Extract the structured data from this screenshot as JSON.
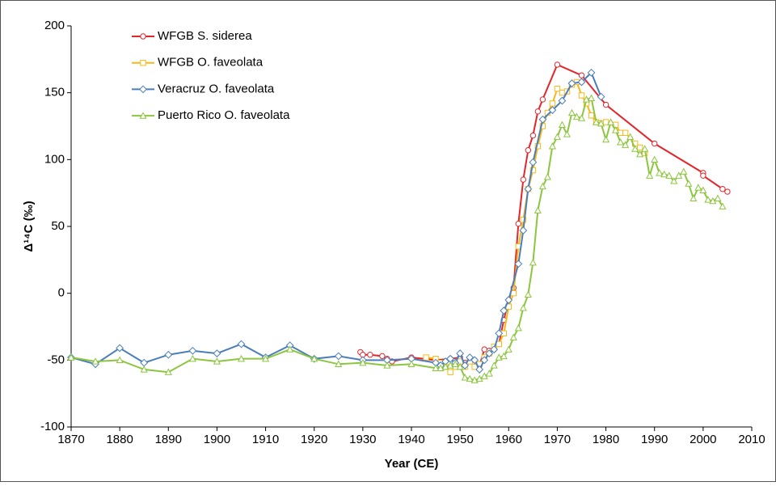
{
  "chart_data": {
    "type": "line",
    "xlabel": "Year (CE)",
    "ylabel": "Δ¹⁴C (‰)",
    "xlim": [
      1870,
      2010
    ],
    "xticks": [
      1870,
      1880,
      1890,
      1900,
      1910,
      1920,
      1930,
      1940,
      1950,
      1960,
      1970,
      1980,
      1990,
      2000,
      2010
    ],
    "ylim": [
      -100,
      200
    ],
    "yticks": [
      -100,
      -50,
      0,
      50,
      100,
      150,
      200
    ],
    "grid": false,
    "legend": "upper left",
    "series": [
      {
        "name": "WFGB S. siderea",
        "color": "#e3262b",
        "marker": "circle",
        "x": [
          1929.5,
          1930,
          1931.5,
          1934,
          1935,
          1936,
          1940,
          1945,
          1948,
          1950,
          1951,
          1952,
          1953,
          1954,
          1955,
          1956,
          1957,
          1958,
          1959,
          1960,
          1961,
          1962,
          1963,
          1964,
          1965,
          1966,
          1967,
          1970,
          1975,
          1980,
          1990,
          2000,
          2000,
          2004,
          2005
        ],
        "values": [
          -44,
          -46,
          -46,
          -47,
          -49,
          -51,
          -48,
          -50,
          -49,
          -48,
          -52,
          -50,
          -50,
          -54,
          -42,
          -43,
          -42,
          -38,
          -20,
          -5,
          4,
          52,
          85,
          107,
          118,
          136,
          145,
          171,
          163,
          141,
          112,
          90,
          88,
          78,
          76
        ]
      },
      {
        "name": "WFGB O. faveolata",
        "color": "#f7b81a",
        "marker": "square",
        "x": [
          1943,
          1945,
          1946,
          1947,
          1948,
          1949,
          1950,
          1951,
          1952,
          1953,
          1954,
          1955,
          1956,
          1957,
          1958,
          1959,
          1960,
          1961,
          1962,
          1963,
          1964,
          1965,
          1966,
          1967,
          1968,
          1969,
          1970,
          1971,
          1972,
          1973,
          1974,
          1975,
          1976,
          1977,
          1978,
          1979,
          1980,
          1982,
          1983,
          1984,
          1986,
          1987,
          1988
        ],
        "values": [
          -48,
          -49,
          -52,
          -55,
          -59,
          -55,
          -51,
          -55,
          -51,
          -55,
          -53,
          -48,
          -45,
          -40,
          -38,
          -30,
          -10,
          0,
          35,
          55,
          78,
          92,
          110,
          125,
          135,
          142,
          153,
          150,
          151,
          156,
          158,
          148,
          142,
          133,
          128,
          127,
          128,
          126,
          120,
          120,
          112,
          109,
          105
        ]
      },
      {
        "name": "Veracruz O. faveolata",
        "color": "#4a7ebb",
        "marker": "diamond",
        "x": [
          1870,
          1875,
          1880,
          1885,
          1890,
          1895,
          1900,
          1905,
          1910,
          1915,
          1920,
          1925,
          1930,
          1935,
          1940,
          1945,
          1946,
          1947,
          1948,
          1949,
          1950,
          1951,
          1952,
          1953,
          1954,
          1955,
          1956,
          1957,
          1958,
          1959,
          1960,
          1962,
          1963,
          1964,
          1965,
          1967,
          1969,
          1971,
          1973,
          1975,
          1977,
          1979
        ],
        "values": [
          -48,
          -53,
          -41,
          -52,
          -46,
          -43,
          -45,
          -38,
          -48,
          -39,
          -49,
          -47,
          -50,
          -50,
          -49,
          -52,
          -54,
          -51,
          -49,
          -52,
          -45,
          -54,
          -48,
          -50,
          -57,
          -50,
          -45,
          -42,
          -30,
          -13,
          -5,
          22,
          47,
          78,
          98,
          130,
          137,
          144,
          157,
          158,
          165,
          147
        ]
      },
      {
        "name": "Puerto Rico O. faveolata",
        "color": "#8cc63e",
        "marker": "triangle",
        "x": [
          1870,
          1875,
          1880,
          1885,
          1890,
          1895,
          1900,
          1905,
          1910,
          1915,
          1920,
          1925,
          1930,
          1935,
          1940,
          1945,
          1946,
          1947,
          1948,
          1949,
          1950,
          1951,
          1952,
          1953,
          1954,
          1955,
          1956,
          1957,
          1958,
          1959,
          1960,
          1961,
          1962,
          1963,
          1964,
          1965,
          1966,
          1967,
          1968,
          1969,
          1970,
          1971,
          1972,
          1973,
          1974,
          1975,
          1976,
          1977,
          1978,
          1979,
          1980,
          1981,
          1982,
          1983,
          1984,
          1985,
          1986,
          1987,
          1988,
          1989,
          1990,
          1991,
          1992,
          1993,
          1994,
          1995,
          1996,
          1997,
          1998,
          1999,
          2000,
          2001,
          2002,
          2003,
          2004
        ],
        "values": [
          -48,
          -51,
          -50,
          -57,
          -59,
          -49,
          -51,
          -49,
          -49,
          -42,
          -49,
          -53,
          -52,
          -54,
          -53,
          -56,
          -56,
          -55,
          -54,
          -53,
          -55,
          -63,
          -64,
          -65,
          -64,
          -62,
          -60,
          -54,
          -48,
          -47,
          -42,
          -33,
          -26,
          -11,
          -1,
          23,
          62,
          80,
          87,
          110,
          117,
          126,
          119,
          135,
          132,
          131,
          145,
          146,
          128,
          127,
          115,
          128,
          122,
          113,
          111,
          117,
          108,
          104,
          108,
          88,
          100,
          90,
          89,
          88,
          84,
          88,
          91,
          82,
          71,
          79,
          77,
          70,
          69,
          71,
          65
        ]
      }
    ]
  }
}
